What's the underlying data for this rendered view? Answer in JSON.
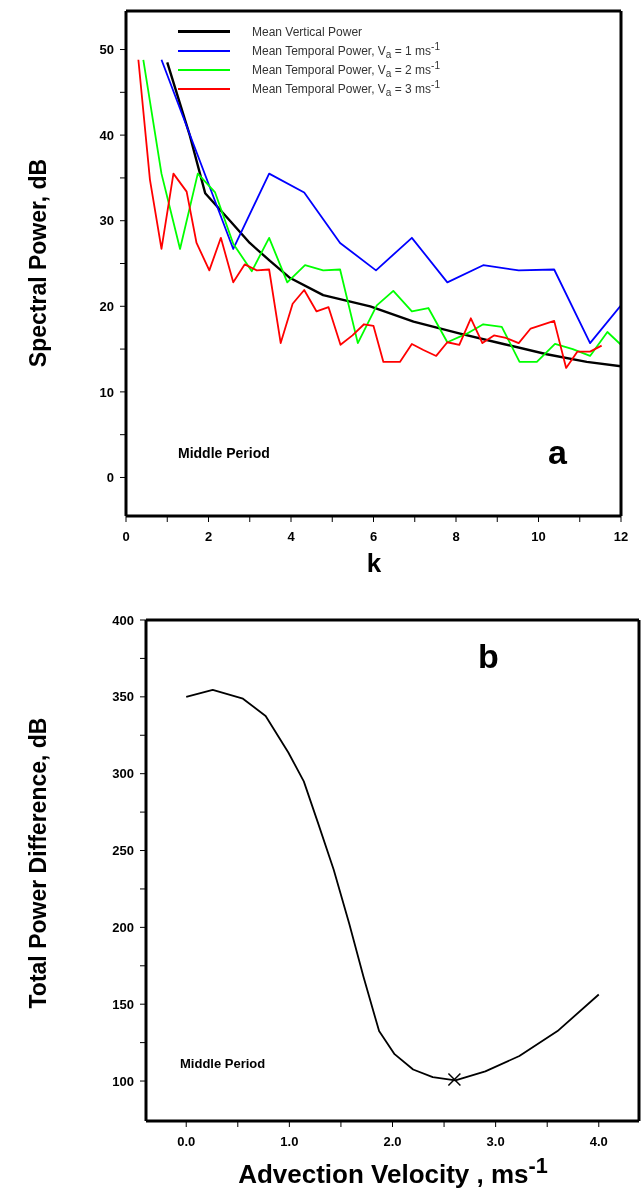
{
  "chart_data": [
    {
      "type": "line",
      "xlabel": "k",
      "ylabel": "Spectral Power, dB",
      "xlim": [
        0,
        12
      ],
      "ylim": [
        -4.5,
        54.5
      ],
      "xticks": [
        0,
        {
          "value": 1,
          "label": null
        },
        2,
        {
          "value": 3,
          "label": null
        },
        4,
        {
          "value": 5,
          "label": null
        },
        6,
        {
          "value": 7,
          "label": null
        },
        8,
        {
          "value": 9,
          "label": null
        },
        10,
        {
          "value": 11,
          "label": null
        },
        12
      ],
      "yticks": [
        0,
        {
          "value": 5,
          "label": null
        },
        10,
        {
          "value": 15,
          "label": null
        },
        20,
        {
          "value": 25,
          "label": null
        },
        30,
        {
          "value": 35,
          "label": null
        },
        40,
        {
          "value": 45,
          "label": null
        },
        50
      ],
      "legend": "top",
      "marker": "none",
      "annotations": [
        "Middle Period",
        "a"
      ],
      "series": [
        {
          "name": "Mean Vertical Power",
          "color": "#000000",
          "x": [
            1.0,
            1.55,
            1.92,
            2.52,
            3.0,
            3.49,
            3.98,
            4.78,
            5.92,
            6.97,
            8.1,
            9.15,
            10.2,
            11.17,
            12
          ],
          "values": [
            48.5,
            39.9,
            33.2,
            30.0,
            27.4,
            25.3,
            23.3,
            21.3,
            20.0,
            18.2,
            16.8,
            15.6,
            14.4,
            13.5,
            13.0
          ]
        },
        {
          "name": "Mean Temporal Power, V$_{a}$ = 1 ms$^{-1}$",
          "color": "#0000ff",
          "x": [
            0.86,
            2.6,
            3.47,
            4.32,
            5.19,
            6.06,
            6.93,
            7.79,
            8.66,
            9.52,
            10.38,
            11.25,
            12
          ],
          "values": [
            48.8,
            26.7,
            35.5,
            33.3,
            27.4,
            24.2,
            28.0,
            22.8,
            24.8,
            24.2,
            24.3,
            15.7,
            20.1
          ]
        },
        {
          "name": "Mean Temporal Power, V$_{a}$ = 2 ms$^{-1}$",
          "color": "#00ff00",
          "x": [
            0.42,
            0.86,
            1.31,
            1.74,
            2.16,
            2.6,
            3.05,
            3.47,
            3.91,
            4.34,
            4.78,
            5.19,
            5.62,
            6.08,
            6.48,
            6.93,
            7.33,
            7.79,
            8.26,
            8.66,
            9.11,
            9.54,
            9.96,
            10.4,
            10.83,
            11.25,
            11.67,
            12
          ],
          "values": [
            48.8,
            35.5,
            26.7,
            35.5,
            33.3,
            27.3,
            24.1,
            28.0,
            22.8,
            24.8,
            24.2,
            24.3,
            15.7,
            20.1,
            21.8,
            19.4,
            19.8,
            15.8,
            16.8,
            17.9,
            17.6,
            13.5,
            13.5,
            15.6,
            15.0,
            14.2,
            17.0,
            15.5
          ]
        },
        {
          "name": "Mean Temporal Power, V$_{a}$ = 3 ms$^{-1}$",
          "color": "#ff0000",
          "x": [
            0.3,
            0.58,
            0.86,
            1.15,
            1.47,
            1.71,
            2.02,
            2.3,
            2.6,
            2.88,
            3.17,
            3.47,
            3.75,
            4.04,
            4.32,
            4.62,
            4.91,
            5.2,
            5.49,
            5.77,
            6.0,
            6.24,
            6.64,
            6.93,
            7.21,
            7.52,
            7.79,
            8.08,
            8.36,
            8.64,
            8.92,
            9.21,
            9.52,
            9.81,
            10.38,
            10.67,
            10.94,
            11.25,
            11.53
          ],
          "values": [
            48.8,
            34.8,
            26.7,
            35.5,
            33.4,
            27.4,
            24.2,
            28.0,
            22.8,
            24.9,
            24.2,
            24.3,
            15.7,
            20.3,
            21.9,
            19.4,
            19.9,
            15.5,
            16.6,
            17.9,
            17.7,
            13.5,
            13.5,
            15.6,
            14.9,
            14.2,
            15.8,
            15.5,
            18.6,
            15.7,
            16.6,
            16.3,
            15.7,
            17.4,
            18.3,
            12.8,
            14.7,
            14.7,
            15.4
          ]
        }
      ]
    },
    {
      "type": "line",
      "xlabel": "Advection Velocity , ms$^{-1}$",
      "ylabel": "Total Power Difference, dB",
      "xlim": [
        -0.39,
        4.39
      ],
      "ylim": [
        74,
        400
      ],
      "xticks": [
        {
          "value": 0,
          "label": "0.0"
        },
        {
          "value": 0.5,
          "label": null
        },
        {
          "value": 1,
          "label": "1.0"
        },
        {
          "value": 1.5,
          "label": null
        },
        {
          "value": 2,
          "label": "2.0"
        },
        {
          "value": 2.5,
          "label": null
        },
        {
          "value": 3,
          "label": "3.0"
        },
        {
          "value": 3.5,
          "label": null
        },
        {
          "value": 4,
          "label": "4.0"
        }
      ],
      "yticks": [
        100,
        {
          "value": 125,
          "label": null
        },
        150,
        {
          "value": 175,
          "label": null
        },
        200,
        {
          "value": 225,
          "label": null
        },
        250,
        {
          "value": 275,
          "label": null
        },
        300,
        {
          "value": 325,
          "label": null
        },
        350,
        {
          "value": 375,
          "label": null
        },
        400
      ],
      "marker": "none",
      "annotations": [
        "Middle Period",
        "b"
      ],
      "series": [
        {
          "color": "#000000",
          "x": [
            0,
            0.257,
            0.55,
            0.77,
            0.99,
            1.14,
            1.28,
            1.43,
            1.58,
            1.72,
            1.87,
            2.02,
            2.2,
            2.39,
            2.61,
            2.9,
            3.23,
            3.6,
            4.0
          ],
          "values": [
            350,
            354.5,
            348.8,
            337.5,
            313.8,
            295,
            267.5,
            237.5,
            202.5,
            167.5,
            132.5,
            117.5,
            107.5,
            102.5,
            100.5,
            106.3,
            116.3,
            132.5,
            156.3
          ]
        },
        {
          "type": "scatter",
          "marker": "cross",
          "color": "#000000",
          "x": [
            2.6
          ],
          "values": [
            101
          ]
        }
      ]
    }
  ]
}
